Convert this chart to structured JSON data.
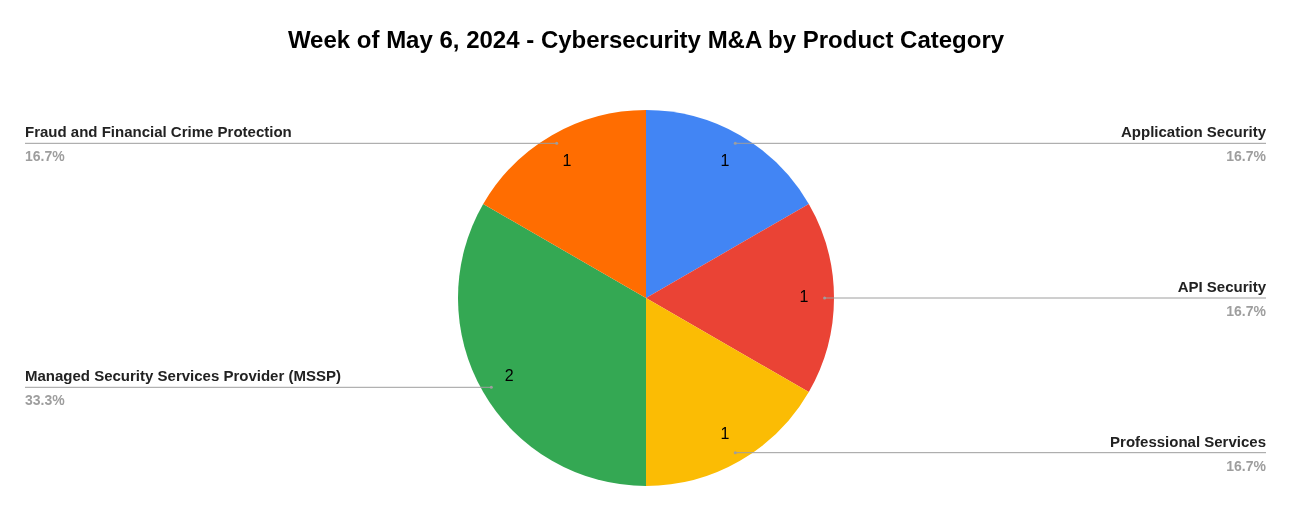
{
  "chart_data": {
    "type": "pie",
    "title": "Week of May 6, 2024 - Cybersecurity M&A by Product Category",
    "categories": [
      "Application Security",
      "API Security",
      "Professional Services",
      "Managed Security Services Provider (MSSP)",
      "Fraud and Financial Crime Protection"
    ],
    "values": [
      1,
      1,
      1,
      2,
      1
    ],
    "colors": [
      "#4285f4",
      "#ea4335",
      "#fbbc04",
      "#34a853",
      "#ff6d01"
    ],
    "value_labels": [
      "1",
      "1",
      "1",
      "2",
      "1"
    ],
    "annotations": [
      {
        "text": "16.7%",
        "x": "Application Security"
      },
      {
        "text": "16.7%",
        "x": "API Security"
      },
      {
        "text": "16.7%",
        "x": "Professional Services"
      },
      {
        "text": "33.3%",
        "x": "Managed Security Services Provider (MSSP)"
      },
      {
        "text": "16.7%",
        "x": "Fraud and Financial Crime Protection"
      }
    ],
    "legend": false
  }
}
